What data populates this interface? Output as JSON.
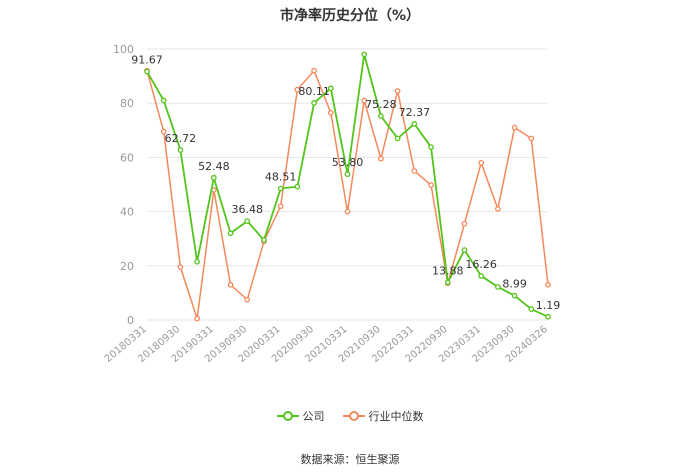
{
  "title": "市净率历史分位（%）",
  "source": "数据来源：恒生聚源",
  "colors": {
    "company": "#52c41a",
    "industry": "#f5895b",
    "grid": "#e6e6e6",
    "axis_text": "#999999",
    "label_text": "#333333"
  },
  "chart_data": {
    "type": "line",
    "title": "市净率历史分位（%）",
    "xlabel": "",
    "ylabel": "",
    "ylim": [
      0,
      100
    ],
    "yticks": [
      0,
      20,
      40,
      60,
      80,
      100
    ],
    "grid": true,
    "legend_position": "bottom",
    "x_tick_labels": [
      "20180331",
      "20180930",
      "20190331",
      "20190930",
      "20200331",
      "20200930",
      "20210331",
      "20210930",
      "20220331",
      "20220930",
      "20230331",
      "20230930",
      "20240326"
    ],
    "series": [
      {
        "name": "公司",
        "color": "#52c41a",
        "values": [
          91.67,
          81.0,
          62.72,
          21.5,
          52.48,
          32.0,
          36.48,
          29.5,
          48.51,
          49.2,
          80.11,
          85.5,
          53.8,
          98.0,
          75.28,
          67.0,
          72.37,
          63.8,
          13.88,
          25.8,
          16.26,
          12.2,
          8.99,
          4.0,
          1.19
        ],
        "labels": [
          "91.67",
          "",
          "62.72",
          "",
          "52.48",
          "",
          "36.48",
          "",
          "48.51",
          "",
          "80.11",
          "",
          "53.80",
          "",
          "75.28",
          "",
          "72.37",
          "",
          "13.88",
          "",
          "16.26",
          "",
          "8.99",
          "",
          "1.19"
        ]
      },
      {
        "name": "行业中位数",
        "color": "#f5895b",
        "values": [
          92.0,
          69.5,
          19.5,
          0.5,
          48.0,
          13.0,
          7.5,
          29.0,
          42.0,
          85.0,
          92.0,
          76.5,
          40.0,
          81.0,
          59.5,
          84.5,
          55.0,
          49.8,
          13.5,
          35.5,
          58.0,
          41.0,
          71.0,
          67.0,
          13.0
        ]
      }
    ]
  }
}
